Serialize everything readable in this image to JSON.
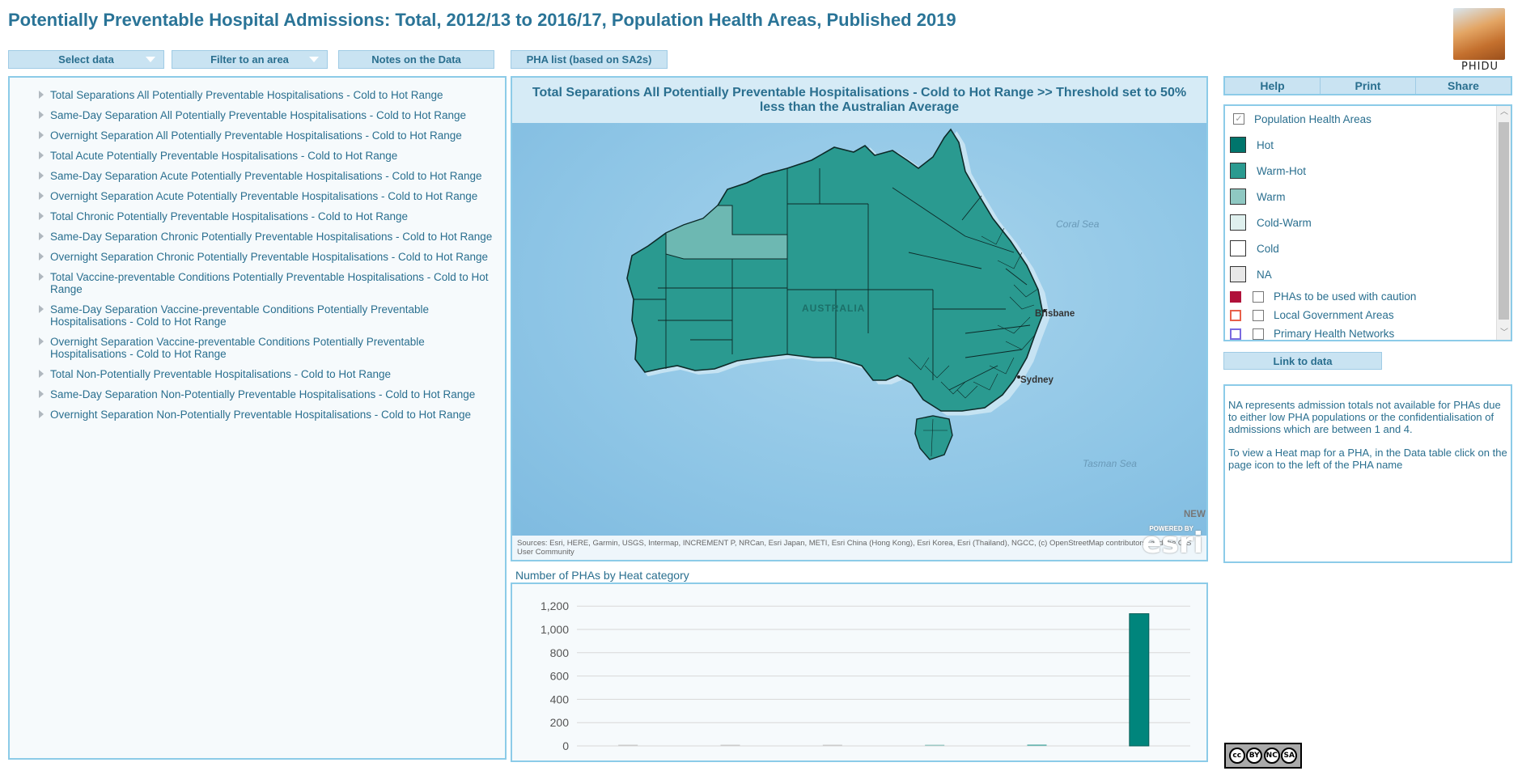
{
  "header": {
    "title": "Potentially Preventable Hospital Admissions: Total, 2012/13 to 2016/17, Population Health Areas, Published 2019",
    "logo_text": "PHIDU"
  },
  "toolbar": {
    "select_data": "Select data",
    "filter_area": "Filter to an area",
    "notes": "Notes on the Data",
    "pha_list": "PHA list (based on SA2s)"
  },
  "data_tree": [
    "Total Separations All Potentially Preventable Hospitalisations - Cold to Hot Range",
    "Same-Day Separation All Potentially Preventable Hospitalisations - Cold to Hot Range",
    "Overnight Separation All Potentially Preventable Hospitalisations - Cold to Hot Range",
    "Total Acute Potentially Preventable Hospitalisations - Cold to Hot Range",
    "Same-Day Separation Acute Potentially Preventable Hospitalisations - Cold to Hot Range",
    "Overnight Separation Acute Potentially Preventable Hospitalisations - Cold to Hot Range",
    "Total Chronic Potentially Preventable Hospitalisations - Cold to Hot Range",
    "Same-Day Separation Chronic Potentially Preventable Hospitalisations - Cold to Hot Range",
    "Overnight Separation Chronic Potentially Preventable Hospitalisations - Cold to Hot Range",
    "Total Vaccine-preventable Conditions Potentially Preventable Hospitalisations - Cold to Hot Range",
    "Same-Day Separation Vaccine-preventable Conditions Potentially Preventable Hospitalisations - Cold to Hot Range",
    "Overnight Separation Vaccine-preventable Conditions Potentially Preventable Hospitalisations - Cold to Hot Range",
    "Total Non-Potentially Preventable Hospitalisations - Cold to Hot Range",
    "Same-Day Separation Non-Potentially Preventable Hospitalisations - Cold to Hot Range",
    "Overnight Separation Non-Potentially Preventable Hospitalisations - Cold to Hot Range"
  ],
  "map": {
    "header": "Total Separations All Potentially Preventable Hospitalisations - Cold to Hot Range >>  Threshold set to 50% less than the Australian Average",
    "attribution": "Sources: Esri, HERE, Garmin, USGS, Intermap, INCREMENT P, NRCan, Esri Japan, METI, Esri China (Hong Kong), Esri Korea, Esri (Thailand), NGCC, (c) OpenStreetMap contributors, and the GIS User Community",
    "powered_by": "POWERED BY",
    "esri": "esri",
    "labels": {
      "coral_sea": "Coral Sea",
      "tasman_sea": "Tasman Sea",
      "australia": "AUSTRALIA",
      "brisbane": "Brisbane",
      "sydney": "Sydney",
      "new": "NEW"
    },
    "colors": {
      "hot": "#00756c",
      "warm_hot": "#2a9a90",
      "warm": "#6db8b2",
      "border": "#0d2a28"
    }
  },
  "chart_title": "Number of PHAs by Heat category",
  "chart_data": {
    "type": "bar",
    "categories": [
      "NA",
      "Cold",
      "Cold-Warm",
      "Warm",
      "Warm-Hot",
      "Hot"
    ],
    "values": [
      2,
      2,
      2,
      3,
      12,
      1135
    ],
    "yticks": [
      0,
      200,
      400,
      600,
      800,
      1000,
      1200
    ],
    "ytick_labels": [
      "0",
      "200",
      "400",
      "600",
      "800",
      "1,000",
      "1,200"
    ],
    "ylim": [
      0,
      1250
    ],
    "colors": [
      "#cccccc",
      "#cccccc",
      "#cccccc",
      "#9ec9c5",
      "#6db8b2",
      "#00857c"
    ],
    "grid": true
  },
  "right_tabs": [
    "Help",
    "Print",
    "Share"
  ],
  "legend": {
    "layer_title": "Population Health Areas",
    "items": [
      {
        "label": "Hot",
        "color": "#00756c"
      },
      {
        "label": "Warm-Hot",
        "color": "#2a9a90"
      },
      {
        "label": "Warm",
        "color": "#8fc8c2"
      },
      {
        "label": "Cold-Warm",
        "color": "#dff0ee"
      },
      {
        "label": "Cold",
        "color": "#ffffff"
      },
      {
        "label": "NA",
        "color": "#e8e8e8"
      }
    ],
    "layers": [
      {
        "label": "PHAs to be used with caution",
        "color": "#b0113a",
        "fill": true
      },
      {
        "label": "Local Government Areas",
        "color": "#e8604a",
        "fill": false
      },
      {
        "label": "Primary Health Networks",
        "color": "#7a6ae0",
        "fill": false
      }
    ]
  },
  "link_to_data": "Link to data",
  "notes": [
    "NA represents admission totals not available for PHAs due to either low PHA populations or the confidentialisation of admissions which are between 1 and 4.",
    "To view a Heat map for a PHA, in the Data table click on the page icon to the left of the PHA name"
  ],
  "license": {
    "cc": "cc",
    "by": "BY",
    "nc": "NC",
    "sa": "SA"
  }
}
